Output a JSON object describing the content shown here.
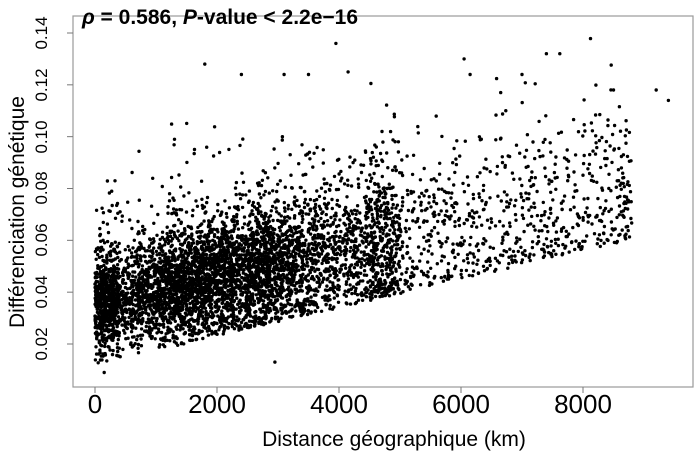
{
  "chart_data": {
    "type": "scatter",
    "title": "",
    "annotation": {
      "rho_symbol": "ρ",
      "rho_text": " = 0.586, ",
      "p_symbol": "P",
      "p_text": "-value < 2.2e−16"
    },
    "xlabel": "Distance géographique (km)",
    "ylabel": "Différenciation génétique",
    "xlim": [
      -450,
      9800
    ],
    "ylim": [
      0.005,
      0.145
    ],
    "xticks": [
      0,
      2000,
      4000,
      6000,
      8000
    ],
    "xtick_labels": [
      "0",
      "2000",
      "4000",
      "6000",
      "8000"
    ],
    "yticks": [
      0.02,
      0.04,
      0.06,
      0.08,
      0.1,
      0.12,
      0.14
    ],
    "ytick_labels": [
      "0.02",
      "0.04",
      "0.06",
      "0.08",
      "0.10",
      "0.12",
      "0.14"
    ],
    "grid": false,
    "legend": null,
    "point_color": "#000000",
    "n_points_approx": 6000,
    "correlation_spearman_rho": 0.586,
    "p_value": "< 2.2e-16",
    "trend": {
      "description": "Positive relationship; dense cloud at 0-3000 km around 0.03-0.05, spreading upward and rightward",
      "approx_mean_line": [
        {
          "x": 0,
          "y": 0.035
        },
        {
          "x": 2000,
          "y": 0.042
        },
        {
          "x": 4000,
          "y": 0.052
        },
        {
          "x": 6000,
          "y": 0.062
        },
        {
          "x": 8000,
          "y": 0.075
        },
        {
          "x": 9300,
          "y": 0.115
        }
      ],
      "approx_lower_envelope": [
        {
          "x": 0,
          "y": 0.015
        },
        {
          "x": 2000,
          "y": 0.022
        },
        {
          "x": 4000,
          "y": 0.035
        },
        {
          "x": 6000,
          "y": 0.045
        },
        {
          "x": 8000,
          "y": 0.058
        }
      ],
      "approx_upper_envelope": [
        {
          "x": 0,
          "y": 0.065
        },
        {
          "x": 1000,
          "y": 0.09
        },
        {
          "x": 2000,
          "y": 0.11
        },
        {
          "x": 4000,
          "y": 0.12
        },
        {
          "x": 6000,
          "y": 0.12
        },
        {
          "x": 8000,
          "y": 0.115
        }
      ]
    },
    "notable_points": [
      {
        "x": 3950,
        "y": 0.136
      },
      {
        "x": 7400,
        "y": 0.132
      },
      {
        "x": 7620,
        "y": 0.132
      },
      {
        "x": 1800,
        "y": 0.128
      },
      {
        "x": 6050,
        "y": 0.13
      },
      {
        "x": 6150,
        "y": 0.124
      },
      {
        "x": 2400,
        "y": 0.124
      },
      {
        "x": 4150,
        "y": 0.125
      },
      {
        "x": 3100,
        "y": 0.124
      },
      {
        "x": 3500,
        "y": 0.124
      },
      {
        "x": 9200,
        "y": 0.118
      },
      {
        "x": 9400,
        "y": 0.114
      },
      {
        "x": 8500,
        "y": 0.118
      },
      {
        "x": 7000,
        "y": 0.124
      },
      {
        "x": 150,
        "y": 0.009
      },
      {
        "x": 2950,
        "y": 0.013
      }
    ]
  }
}
